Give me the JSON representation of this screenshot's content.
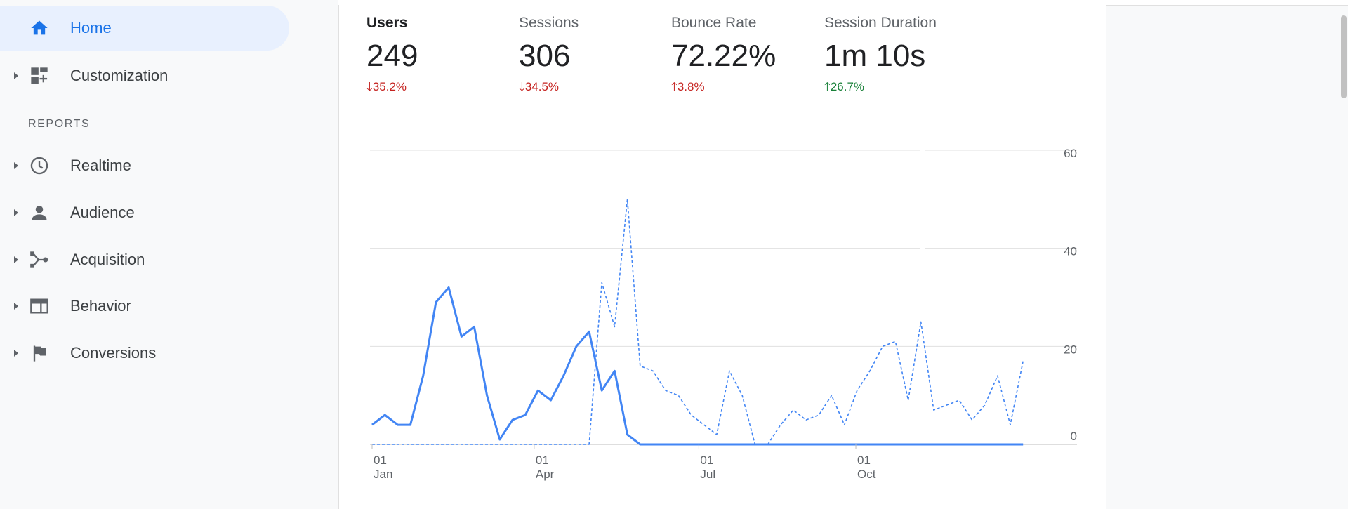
{
  "sidebar": {
    "home": {
      "label": "Home",
      "icon": "home-icon"
    },
    "customization": {
      "label": "Customization",
      "icon": "dashboard-icon"
    },
    "reports_heading": "REPORTS",
    "items": [
      {
        "label": "Realtime",
        "icon": "clock-icon"
      },
      {
        "label": "Audience",
        "icon": "person-icon"
      },
      {
        "label": "Acquisition",
        "icon": "acquisition-icon"
      },
      {
        "label": "Behavior",
        "icon": "behavior-icon"
      },
      {
        "label": "Conversions",
        "icon": "flag-icon"
      }
    ]
  },
  "metrics": [
    {
      "label": "Users",
      "value": "249",
      "change": "35.2%",
      "direction": "down",
      "color": "#c5221f",
      "selected": true
    },
    {
      "label": "Sessions",
      "value": "306",
      "change": "34.5%",
      "direction": "down",
      "color": "#c5221f",
      "selected": false
    },
    {
      "label": "Bounce Rate",
      "value": "72.22%",
      "change": "3.8%",
      "direction": "up",
      "color": "#c5221f",
      "selected": false
    },
    {
      "label": "Session Duration",
      "value": "1m 10s",
      "change": "26.7%",
      "direction": "up",
      "color": "#188038",
      "selected": false
    }
  ],
  "chart_data": {
    "type": "line",
    "ylim": [
      0,
      60
    ],
    "y_ticks": [
      "0",
      "20",
      "40",
      "60"
    ],
    "x_ticks": [
      {
        "day": "01",
        "month": "Jan",
        "week": 0
      },
      {
        "day": "01",
        "month": "Apr",
        "week": 12.7
      },
      {
        "day": "01",
        "month": "Jul",
        "week": 25.6
      },
      {
        "day": "01",
        "month": "Oct",
        "week": 37.9
      }
    ],
    "series": [
      {
        "style": "solid",
        "color": "#4285f4",
        "values": [
          4,
          6,
          4,
          4,
          14,
          29,
          32,
          22,
          24,
          10,
          1,
          5,
          6,
          11,
          9,
          14,
          20,
          23,
          11,
          15,
          2,
          0,
          0,
          0,
          0,
          0,
          0,
          0,
          0,
          0,
          0,
          0,
          0,
          0,
          0,
          0,
          0,
          0,
          0,
          0,
          0,
          0,
          0,
          0,
          0,
          0,
          0,
          0,
          0,
          0,
          0,
          0
        ]
      },
      {
        "style": "dashed",
        "color": "#4285f4",
        "values": [
          0,
          0,
          0,
          0,
          0,
          0,
          0,
          0,
          0,
          0,
          0,
          0,
          0,
          0,
          0,
          0,
          0,
          0,
          33,
          24,
          50,
          16,
          15,
          11,
          10,
          6,
          4,
          2,
          15,
          10,
          0,
          0,
          4,
          7,
          5,
          6,
          10,
          4,
          11,
          15,
          20,
          21,
          9,
          25,
          7,
          8,
          9,
          5,
          8,
          14,
          4,
          17
        ]
      }
    ]
  }
}
